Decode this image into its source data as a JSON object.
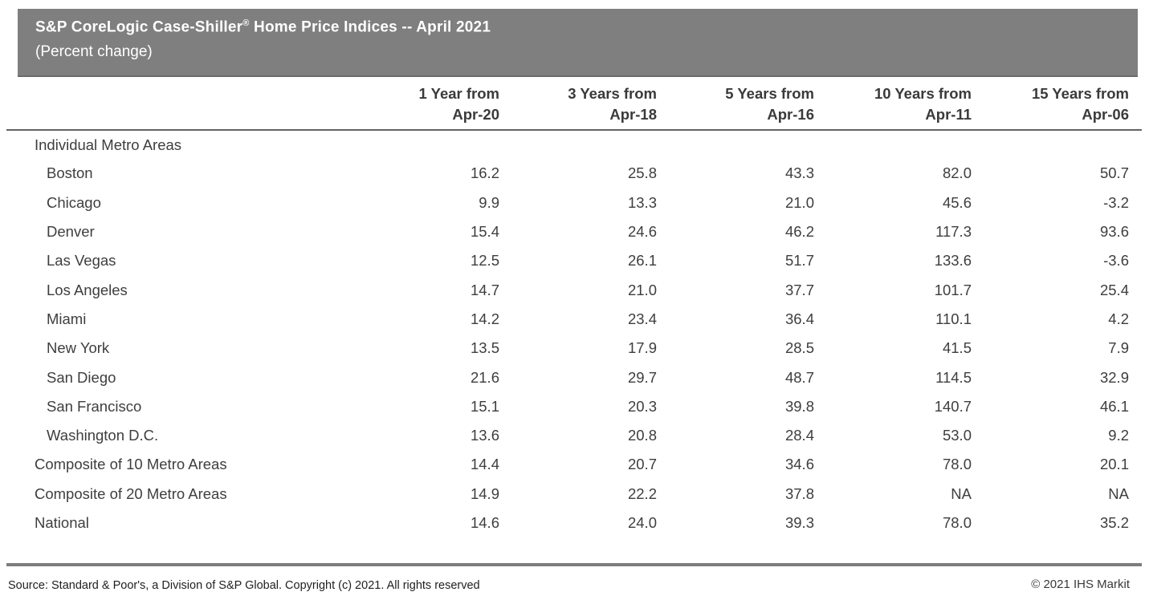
{
  "title_bar": {
    "title_part1": "S&P CoreLogic Case-Shiller",
    "title_sup": "®",
    "title_part2": " Home Price Indices -- April 2021",
    "subtitle": "(Percent change)",
    "background_color": "#7f7f7f",
    "text_color": "#ffffff"
  },
  "table": {
    "columns": [
      {
        "line1": "1 Year from",
        "line2": "Apr-20"
      },
      {
        "line1": "3 Years from",
        "line2": "Apr-18"
      },
      {
        "line1": "5 Years from",
        "line2": "Apr-16"
      },
      {
        "line1": "10 Years from",
        "line2": "Apr-11"
      },
      {
        "line1": "15 Years from",
        "line2": "Apr-06"
      }
    ],
    "rows": [
      {
        "label": "Individual Metro Areas",
        "indent": 0,
        "values": [
          "",
          "",
          "",
          "",
          ""
        ]
      },
      {
        "label": "Boston",
        "indent": 1,
        "values": [
          "16.2",
          "25.8",
          "43.3",
          "82.0",
          "50.7"
        ]
      },
      {
        "label": "Chicago",
        "indent": 1,
        "values": [
          "9.9",
          "13.3",
          "21.0",
          "45.6",
          "-3.2"
        ]
      },
      {
        "label": "Denver",
        "indent": 1,
        "values": [
          "15.4",
          "24.6",
          "46.2",
          "117.3",
          "93.6"
        ]
      },
      {
        "label": "Las Vegas",
        "indent": 1,
        "values": [
          "12.5",
          "26.1",
          "51.7",
          "133.6",
          "-3.6"
        ]
      },
      {
        "label": "Los Angeles",
        "indent": 1,
        "values": [
          "14.7",
          "21.0",
          "37.7",
          "101.7",
          "25.4"
        ]
      },
      {
        "label": "Miami",
        "indent": 1,
        "values": [
          "14.2",
          "23.4",
          "36.4",
          "110.1",
          "4.2"
        ]
      },
      {
        "label": "New York",
        "indent": 1,
        "values": [
          "13.5",
          "17.9",
          "28.5",
          "41.5",
          "7.9"
        ]
      },
      {
        "label": "San Diego",
        "indent": 1,
        "values": [
          "21.6",
          "29.7",
          "48.7",
          "114.5",
          "32.9"
        ]
      },
      {
        "label": "San Francisco",
        "indent": 1,
        "values": [
          "15.1",
          "20.3",
          "39.8",
          "140.7",
          "46.1"
        ]
      },
      {
        "label": "Washington D.C.",
        "indent": 1,
        "values": [
          "13.6",
          "20.8",
          "28.4",
          "53.0",
          "9.2"
        ]
      },
      {
        "label": "Composite of 10 Metro Areas",
        "indent": 0,
        "values": [
          "14.4",
          "20.7",
          "34.6",
          "78.0",
          "20.1"
        ]
      },
      {
        "label": "Composite of 20 Metro Areas",
        "indent": 0,
        "values": [
          "14.9",
          "22.2",
          "37.8",
          "NA",
          "NA"
        ]
      },
      {
        "label": "National",
        "indent": 0,
        "values": [
          "14.6",
          "24.0",
          "39.3",
          "78.0",
          "35.2"
        ]
      }
    ]
  },
  "footer": {
    "source": "Source: Standard & Poor's, a Division of S&P Global. Copyright (c) 2021. All rights reserved",
    "copyright": "© 2021 IHS Markit"
  },
  "chart_data": {
    "type": "table",
    "title": "S&P CoreLogic Case-Shiller® Home Price Indices -- April 2021 (Percent change)",
    "columns": [
      "1 Year from Apr-20",
      "3 Years from Apr-18",
      "5 Years from Apr-16",
      "10 Years from Apr-11",
      "15 Years from Apr-06"
    ],
    "rows": [
      {
        "label": "Boston",
        "group": "Individual Metro Areas",
        "values": [
          16.2,
          25.8,
          43.3,
          82.0,
          50.7
        ]
      },
      {
        "label": "Chicago",
        "group": "Individual Metro Areas",
        "values": [
          9.9,
          13.3,
          21.0,
          45.6,
          -3.2
        ]
      },
      {
        "label": "Denver",
        "group": "Individual Metro Areas",
        "values": [
          15.4,
          24.6,
          46.2,
          117.3,
          93.6
        ]
      },
      {
        "label": "Las Vegas",
        "group": "Individual Metro Areas",
        "values": [
          12.5,
          26.1,
          51.7,
          133.6,
          -3.6
        ]
      },
      {
        "label": "Los Angeles",
        "group": "Individual Metro Areas",
        "values": [
          14.7,
          21.0,
          37.7,
          101.7,
          25.4
        ]
      },
      {
        "label": "Miami",
        "group": "Individual Metro Areas",
        "values": [
          14.2,
          23.4,
          36.4,
          110.1,
          4.2
        ]
      },
      {
        "label": "New York",
        "group": "Individual Metro Areas",
        "values": [
          13.5,
          17.9,
          28.5,
          41.5,
          7.9
        ]
      },
      {
        "label": "San Diego",
        "group": "Individual Metro Areas",
        "values": [
          21.6,
          29.7,
          48.7,
          114.5,
          32.9
        ]
      },
      {
        "label": "San Francisco",
        "group": "Individual Metro Areas",
        "values": [
          15.1,
          20.3,
          39.8,
          140.7,
          46.1
        ]
      },
      {
        "label": "Washington D.C.",
        "group": "Individual Metro Areas",
        "values": [
          13.6,
          20.8,
          28.4,
          53.0,
          9.2
        ]
      },
      {
        "label": "Composite of 10 Metro Areas",
        "group": null,
        "values": [
          14.4,
          20.7,
          34.6,
          78.0,
          20.1
        ]
      },
      {
        "label": "Composite of 20 Metro Areas",
        "group": null,
        "values": [
          14.9,
          22.2,
          37.8,
          null,
          null
        ]
      },
      {
        "label": "National",
        "group": null,
        "values": [
          14.6,
          24.0,
          39.3,
          78.0,
          35.2
        ]
      }
    ]
  }
}
